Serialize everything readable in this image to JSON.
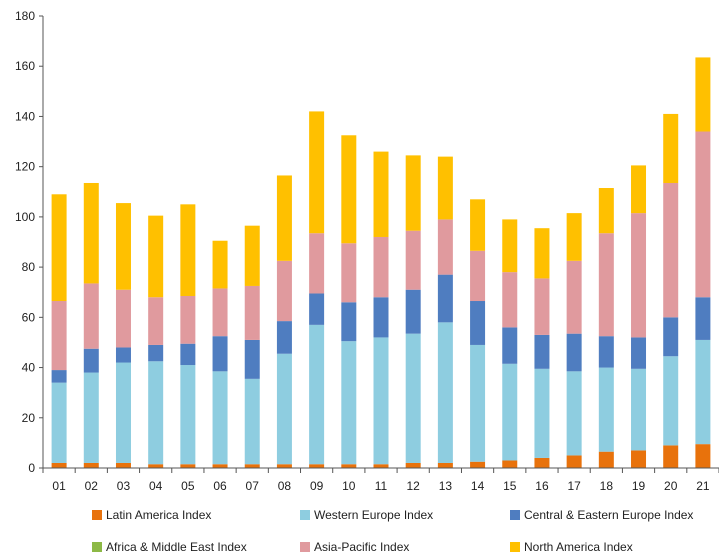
{
  "chart_data": {
    "type": "bar",
    "stacked": true,
    "categories": [
      "01",
      "02",
      "03",
      "04",
      "05",
      "06",
      "07",
      "08",
      "09",
      "10",
      "11",
      "12",
      "13",
      "14",
      "15",
      "16",
      "17",
      "18",
      "19",
      "20",
      "21"
    ],
    "ylim": [
      0,
      180
    ],
    "yticks": [
      0,
      20,
      40,
      60,
      80,
      100,
      120,
      140,
      160,
      180
    ],
    "series": [
      {
        "name": "Latin America Index",
        "color": "#E8720C",
        "values": [
          2,
          2,
          2,
          1.5,
          1.5,
          1.5,
          1.5,
          1.5,
          1.5,
          1.5,
          1.5,
          2,
          2,
          2.5,
          3,
          4,
          5,
          6.5,
          7,
          9,
          9.5
        ]
      },
      {
        "name": "Western Europe Index",
        "color": "#8ECDE0",
        "values": [
          32,
          36,
          40,
          41,
          39.5,
          37,
          34,
          44,
          55.5,
          49,
          50.5,
          51.5,
          56,
          46.5,
          38.5,
          35.5,
          33.5,
          33.5,
          32.5,
          35.5,
          41.5
        ]
      },
      {
        "name": "Central & Eastern Europe Index",
        "color": "#4F7DC0",
        "values": [
          5,
          9.5,
          6,
          6.5,
          8.5,
          14,
          15.5,
          13,
          12.5,
          15.5,
          16,
          17.5,
          19,
          17.5,
          14.5,
          13.5,
          15,
          12.5,
          12.5,
          15.5,
          17
        ]
      },
      {
        "name": "Africa & Middle East Index",
        "color": "#8DB946",
        "values": [
          0,
          0,
          0,
          0,
          0,
          0,
          0,
          0,
          0,
          0,
          0,
          0,
          0,
          0,
          0,
          0,
          0,
          0,
          0,
          0,
          0
        ]
      },
      {
        "name": "Asia-Pacific Index",
        "color": "#E09A9E",
        "values": [
          27.5,
          26,
          23,
          19,
          19,
          19,
          21.5,
          24,
          24,
          23.5,
          24,
          23.5,
          22,
          20,
          22,
          22.5,
          29,
          41,
          49.5,
          53.5,
          66
        ]
      },
      {
        "name": "North America Index",
        "color": "#FFC000",
        "values": [
          42.5,
          40,
          34.5,
          32.5,
          36.5,
          19,
          24,
          34,
          48.5,
          43,
          34,
          30,
          25,
          20.5,
          21,
          20,
          19,
          18,
          19,
          27.5,
          29.5
        ]
      }
    ],
    "legend_position": "bottom",
    "grid": false
  }
}
